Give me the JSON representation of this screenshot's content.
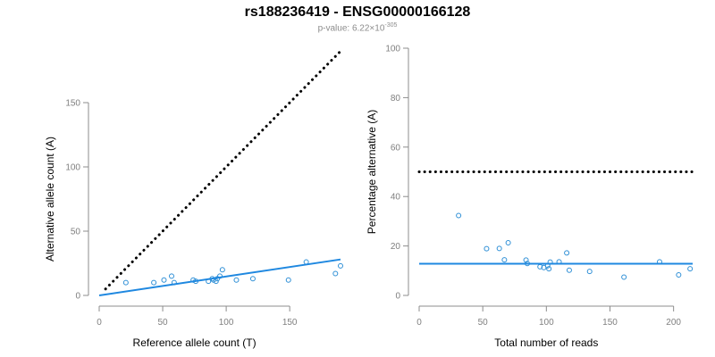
{
  "title": "rs188236419 - ENSG00000166128",
  "subtitle": {
    "prefix": "p-value: ",
    "mantissa": "6.22",
    "times": "×",
    "base": "10",
    "exponent": "-305"
  },
  "colors": {
    "points": "#2e8fd6",
    "fit_line": "#1f88e0",
    "expected_line": "#000000",
    "axis": "#8c8c8c",
    "tick_label": "#7f7f7f",
    "axis_label": "#000000"
  },
  "chart_data": [
    {
      "type": "scatter",
      "xlabel": "Reference allele count (T)",
      "ylabel": "Alternative allele count (A)",
      "xlim": [
        0,
        190
      ],
      "ylim": [
        0,
        150
      ],
      "xticks": [
        0,
        50,
        100,
        150
      ],
      "yticks": [
        0,
        50,
        100,
        150
      ],
      "grid": false,
      "series": [
        {
          "kind": "points",
          "x": [
            21,
            43,
            51,
            57,
            59,
            74,
            76,
            86,
            89,
            90,
            92,
            93,
            95,
            97,
            108,
            121,
            149,
            163,
            186,
            190
          ],
          "y": [
            10,
            10,
            12,
            15,
            10,
            12,
            11,
            11,
            13,
            12,
            11,
            13,
            15,
            20,
            12,
            13,
            12,
            26,
            17,
            23
          ]
        },
        {
          "kind": "line",
          "style": "solid",
          "x": [
            0,
            190
          ],
          "y": [
            0,
            28
          ]
        },
        {
          "kind": "line",
          "style": "dotted",
          "x": [
            5,
            190
          ],
          "y": [
            5,
            190
          ]
        }
      ]
    },
    {
      "type": "scatter",
      "xlabel": "Total number of reads",
      "ylabel": "Percentage alternative (A)",
      "xlim": [
        0,
        215
      ],
      "ylim": [
        0,
        100
      ],
      "xticks": [
        0,
        50,
        100,
        150,
        200
      ],
      "yticks": [
        0,
        20,
        40,
        60,
        80,
        100
      ],
      "grid": false,
      "series": [
        {
          "kind": "points",
          "x": [
            31,
            53,
            63,
            67,
            70,
            84,
            85,
            95,
            98,
            101,
            102,
            103,
            110,
            116,
            118,
            134,
            161,
            189,
            204,
            213
          ],
          "y": [
            32.3,
            18.9,
            19.0,
            14.4,
            21.3,
            14.3,
            12.9,
            11.6,
            11.3,
            12.0,
            10.8,
            13.5,
            13.6,
            17.2,
            10.2,
            9.7,
            7.4,
            13.6,
            8.3,
            10.8
          ]
        },
        {
          "kind": "line",
          "style": "solid",
          "x": [
            0,
            215
          ],
          "y": [
            12.8,
            12.8
          ]
        },
        {
          "kind": "line",
          "style": "dotted",
          "x": [
            0,
            215
          ],
          "y": [
            50,
            50
          ]
        }
      ]
    }
  ]
}
